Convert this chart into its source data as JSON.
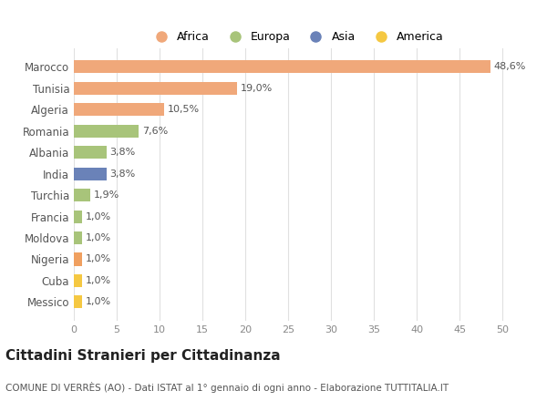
{
  "categories": [
    "Messico",
    "Cuba",
    "Nigeria",
    "Moldova",
    "Francia",
    "Turchia",
    "India",
    "Albania",
    "Romania",
    "Algeria",
    "Tunisia",
    "Marocco"
  ],
  "values": [
    1.0,
    1.0,
    1.0,
    1.0,
    1.0,
    1.9,
    3.8,
    3.8,
    7.6,
    10.5,
    19.0,
    48.6
  ],
  "labels": [
    "1,0%",
    "1,0%",
    "1,0%",
    "1,0%",
    "1,0%",
    "1,9%",
    "3,8%",
    "3,8%",
    "7,6%",
    "10,5%",
    "19,0%",
    "48,6%"
  ],
  "colors": [
    "#F5C842",
    "#F5C842",
    "#F0A060",
    "#A8C47A",
    "#A8C47A",
    "#A8C47A",
    "#6A82B8",
    "#A8C47A",
    "#A8C47A",
    "#F0A87A",
    "#F0A87A",
    "#F0A87A"
  ],
  "legend": [
    {
      "label": "Africa",
      "color": "#F0A87A"
    },
    {
      "label": "Europa",
      "color": "#A8C47A"
    },
    {
      "label": "Asia",
      "color": "#6A82B8"
    },
    {
      "label": "America",
      "color": "#F5C842"
    }
  ],
  "title": "Cittadini Stranieri per Cittadinanza",
  "subtitle": "COMUNE DI VERRÈS (AO) - Dati ISTAT al 1° gennaio di ogni anno - Elaborazione TUTTITALIA.IT",
  "xlim": [
    0,
    52
  ],
  "xticks": [
    0,
    5,
    10,
    15,
    20,
    25,
    30,
    35,
    40,
    45,
    50
  ],
  "bg_color": "#ffffff",
  "bar_height": 0.6
}
